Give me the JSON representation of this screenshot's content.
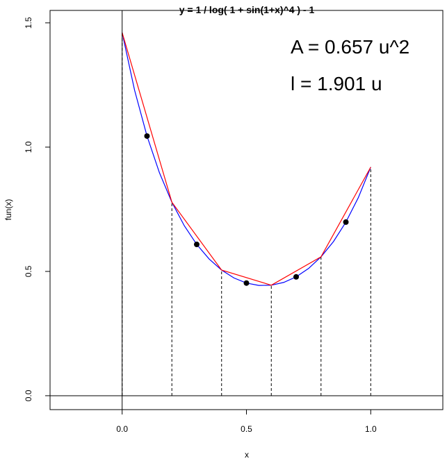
{
  "chart_data": {
    "type": "line",
    "title": "y = 1 / log( 1 + sin(1+x)^4 ) - 1",
    "x_label": "x",
    "y_label": "fun(x)",
    "xlim": [
      -0.29,
      1.29
    ],
    "ylim": [
      -0.056,
      1.55
    ],
    "xticks": [
      {
        "value": 0,
        "label": "0.0"
      },
      {
        "value": 0.5,
        "label": "0.5"
      },
      {
        "value": 1,
        "label": "1.0"
      }
    ],
    "yticks": [
      {
        "value": 0,
        "label": "0.0"
      },
      {
        "value": 0.5,
        "label": "0.5"
      },
      {
        "value": 1,
        "label": "1.0"
      },
      {
        "value": 1.5,
        "label": "1.5"
      }
    ],
    "series": [
      {
        "name": "fun",
        "color": "#0000ff",
        "style": "line",
        "x": [
          0,
          0.05,
          0.1,
          0.15,
          0.2,
          0.25,
          0.3,
          0.35,
          0.4,
          0.45,
          0.5,
          0.55,
          0.6,
          0.65,
          0.7,
          0.75,
          0.8,
          0.85,
          0.9,
          0.95,
          1
        ],
        "values": [
          1.4608,
          1.2291,
          1.0446,
          0.897,
          0.7785,
          0.6838,
          0.6086,
          0.5499,
          0.5054,
          0.4736,
          0.4532,
          0.4436,
          0.4445,
          0.4558,
          0.4781,
          0.512,
          0.5587,
          0.62,
          0.6983,
          0.7967,
          0.9195
        ]
      },
      {
        "name": "chords",
        "color": "#ff0000",
        "style": "polyline",
        "x": [
          0,
          0.2,
          0.4,
          0.6,
          0.8,
          1
        ],
        "values": [
          1.4608,
          0.7785,
          0.5054,
          0.4445,
          0.5587,
          0.9195
        ]
      },
      {
        "name": "midpoints",
        "color": "#000000",
        "style": "points",
        "x": [
          0.1,
          0.3,
          0.5,
          0.7,
          0.9
        ],
        "values": [
          1.0446,
          0.6086,
          0.4532,
          0.4781,
          0.6983
        ]
      }
    ],
    "annotations": [
      {
        "text": "A = 0.657 u^2",
        "color": "#000000"
      },
      {
        "text": "l = 1.901 u",
        "color": "#ff0000"
      }
    ]
  }
}
